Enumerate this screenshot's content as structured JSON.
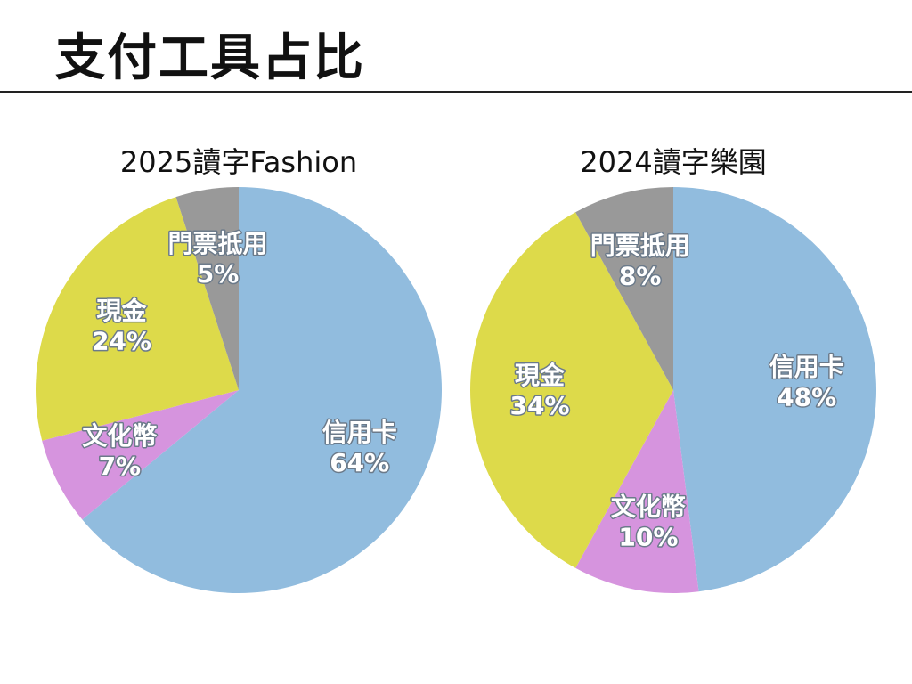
{
  "page": {
    "title": "支付工具占比"
  },
  "chart_data": [
    {
      "type": "pie",
      "title": "2025讀字Fashion",
      "start": "12 o'clock",
      "direction": "clockwise",
      "slices": [
        {
          "label": "信用卡",
          "value": 64,
          "value_label": "64%",
          "color": "#91BCDE"
        },
        {
          "label": "文化幣",
          "value": 7,
          "value_label": "7%",
          "color": "#D694DE"
        },
        {
          "label": "現金",
          "value": 24,
          "value_label": "24%",
          "color": "#DDDA4A"
        },
        {
          "label": "門票抵用",
          "value": 5,
          "value_label": "5%",
          "color": "#999999"
        }
      ]
    },
    {
      "type": "pie",
      "title": "2024讀字樂園",
      "start": "12 o'clock",
      "direction": "clockwise",
      "slices": [
        {
          "label": "信用卡",
          "value": 48,
          "value_label": "48%",
          "color": "#91BCDE"
        },
        {
          "label": "文化幣",
          "value": 10,
          "value_label": "10%",
          "color": "#D694DE"
        },
        {
          "label": "現金",
          "value": 34,
          "value_label": "34%",
          "color": "#DDDA4A"
        },
        {
          "label": "門票抵用",
          "value": 8,
          "value_label": "8%",
          "color": "#999999"
        }
      ]
    }
  ]
}
